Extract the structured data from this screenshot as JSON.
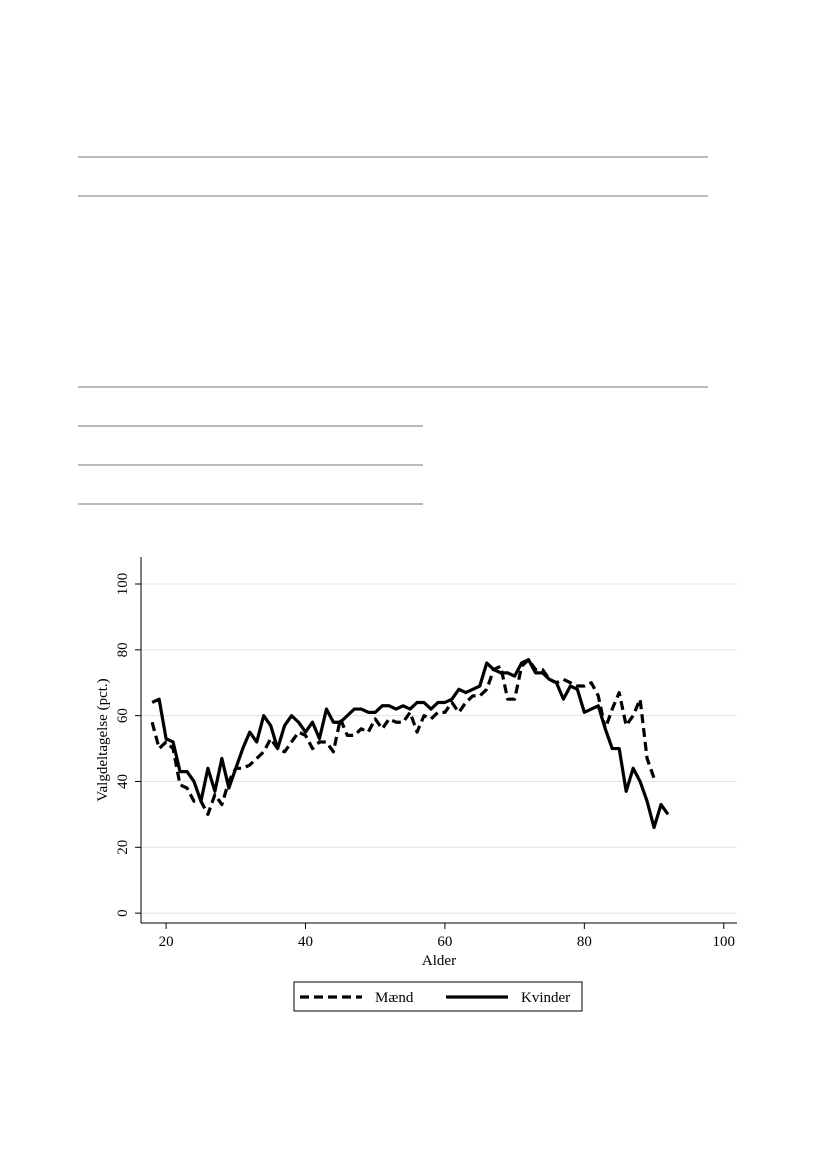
{
  "chart_data": {
    "type": "line",
    "xlabel": "Alder",
    "ylabel": "Valgdeltagelse (pct.)",
    "x": [
      18,
      19,
      20,
      21,
      22,
      23,
      24,
      25,
      26,
      27,
      28,
      29,
      30,
      31,
      32,
      33,
      34,
      35,
      36,
      37,
      38,
      39,
      40,
      41,
      42,
      43,
      44,
      45,
      46,
      47,
      48,
      49,
      50,
      51,
      52,
      53,
      54,
      55,
      56,
      57,
      58,
      59,
      60,
      61,
      62,
      63,
      64,
      65,
      66,
      67,
      68,
      69,
      70,
      71,
      72,
      73,
      74,
      75,
      76,
      77,
      78,
      79,
      80,
      81,
      82,
      83,
      84,
      85,
      86,
      87,
      88,
      89,
      90,
      91,
      92
    ],
    "series": [
      {
        "name": "Mænd",
        "color": "#000000",
        "line_style": "dashed",
        "values": [
          58,
          50,
          52,
          50,
          39,
          38,
          34,
          34,
          30,
          36,
          33,
          40,
          44,
          44,
          45,
          47,
          49,
          53,
          50,
          49,
          52,
          55,
          54,
          50,
          52,
          52,
          49,
          59,
          54,
          54,
          56,
          55,
          59,
          56,
          59,
          58,
          58,
          61,
          55,
          60,
          59,
          61,
          61,
          64,
          61,
          64,
          66,
          66,
          68,
          74,
          75,
          65,
          65,
          75,
          77,
          74,
          74,
          71,
          70,
          71,
          70,
          69,
          69,
          70,
          66,
          56,
          62,
          67,
          57,
          60,
          65,
          47,
          41,
          null,
          null
        ]
      },
      {
        "name": "Kvinder",
        "color": "#000000",
        "line_style": "solid",
        "values": [
          64,
          65,
          53,
          52,
          43,
          43,
          40,
          34,
          44,
          37,
          47,
          38,
          44,
          50,
          55,
          52,
          60,
          57,
          50,
          57,
          60,
          58,
          55,
          58,
          53,
          62,
          58,
          58,
          60,
          62,
          62,
          61,
          61,
          63,
          63,
          62,
          63,
          62,
          64,
          64,
          62,
          64,
          64,
          65,
          68,
          67,
          68,
          69,
          76,
          74,
          73,
          73,
          72,
          76,
          77,
          73,
          73,
          71,
          70,
          65,
          69,
          68,
          61,
          62,
          63,
          56,
          50,
          50,
          37,
          44,
          40,
          34,
          26,
          33,
          30
        ]
      }
    ],
    "xlim": [
      16.4,
      101.9
    ],
    "xticks": [
      20,
      40,
      60,
      80,
      100
    ],
    "ylim": [
      -3,
      108.2
    ],
    "yticks": [
      0,
      20,
      40,
      60,
      80,
      100
    ],
    "grid": true,
    "legend": "bottom"
  }
}
